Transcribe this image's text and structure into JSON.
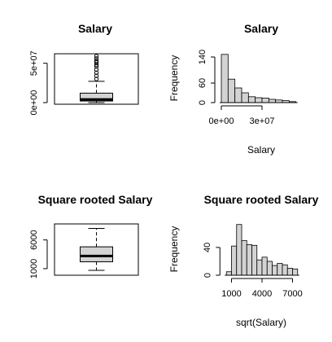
{
  "chart_data": [
    {
      "type": "box",
      "title": "Salary",
      "yticks": [
        0,
        50000000
      ],
      "ytick_labels": [
        "0e+00",
        "5e+07"
      ],
      "ylim": [
        0,
        60000000
      ],
      "stats": {
        "min": 0,
        "q1": 2000000,
        "median": 4000000,
        "q3": 12000000,
        "max": 27000000
      },
      "outliers": [
        30000000,
        34000000,
        38000000,
        42000000,
        46000000,
        48000000,
        51000000,
        53000000,
        56000000,
        59000000
      ]
    },
    {
      "type": "bar",
      "title": "Salary",
      "xlabel": "Salary",
      "ylabel": "Frequency",
      "xticks": [
        0,
        30000000
      ],
      "xtick_labels": [
        "0e+00",
        "3e+07"
      ],
      "xlim": [
        0,
        60000000
      ],
      "yticks": [
        0,
        60,
        140
      ],
      "ylim": [
        0,
        150
      ],
      "bin_edges": [
        0,
        5000000,
        10000000,
        15000000,
        20000000,
        25000000,
        30000000,
        35000000,
        40000000,
        45000000,
        50000000,
        55000000
      ],
      "values": [
        148,
        72,
        45,
        30,
        18,
        15,
        14,
        10,
        8,
        6,
        3
      ]
    },
    {
      "type": "box",
      "title": "Square rooted Salary",
      "yticks": [
        1000,
        6000
      ],
      "ytick_labels": [
        "1000",
        "6000"
      ],
      "ylim": [
        0,
        8500
      ],
      "stats": {
        "min": 700,
        "q1": 2200,
        "median": 3200,
        "q3": 4800,
        "max": 8000
      },
      "outliers": []
    },
    {
      "type": "bar",
      "title": "Square rooted Salary",
      "xlabel": "sqrt(Salary)",
      "ylabel": "Frequency",
      "xticks": [
        1000,
        4000,
        7000
      ],
      "xlim": [
        0,
        8000
      ],
      "yticks": [
        0,
        40
      ],
      "ylim": [
        0,
        75
      ],
      "bin_edges": [
        500,
        1000,
        1500,
        2000,
        2500,
        3000,
        3500,
        4000,
        4500,
        5000,
        5500,
        6000,
        6500,
        7000,
        7500
      ],
      "values": [
        5,
        42,
        73,
        50,
        44,
        43,
        22,
        26,
        20,
        14,
        17,
        15,
        10,
        9
      ]
    }
  ]
}
